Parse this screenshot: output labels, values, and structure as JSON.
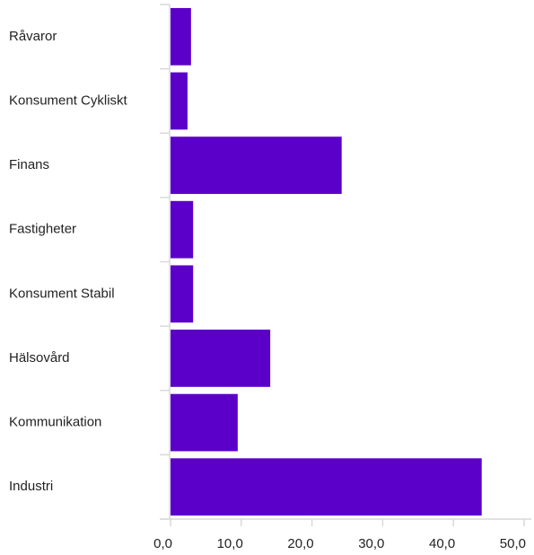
{
  "chart_data": {
    "type": "bar",
    "orientation": "horizontal",
    "categories": [
      "Råvaror",
      "Konsument Cykliskt",
      "Finans",
      "Fastigheter",
      "Konsument Stabil",
      "Hälsovård",
      "Kommunikation",
      "Industri"
    ],
    "values": [
      2.9,
      2.4,
      24.2,
      3.2,
      3.2,
      14.1,
      9.5,
      44.0
    ],
    "color": "#5b00c9",
    "xlim": [
      0,
      50
    ],
    "xticks": [
      {
        "value": 0,
        "label": "0,0"
      },
      {
        "value": 10,
        "label": "10,0"
      },
      {
        "value": 20,
        "label": "20,0"
      },
      {
        "value": 30,
        "label": "30,0"
      },
      {
        "value": 40,
        "label": "40,0"
      },
      {
        "value": 50,
        "label": "50,0"
      }
    ]
  }
}
